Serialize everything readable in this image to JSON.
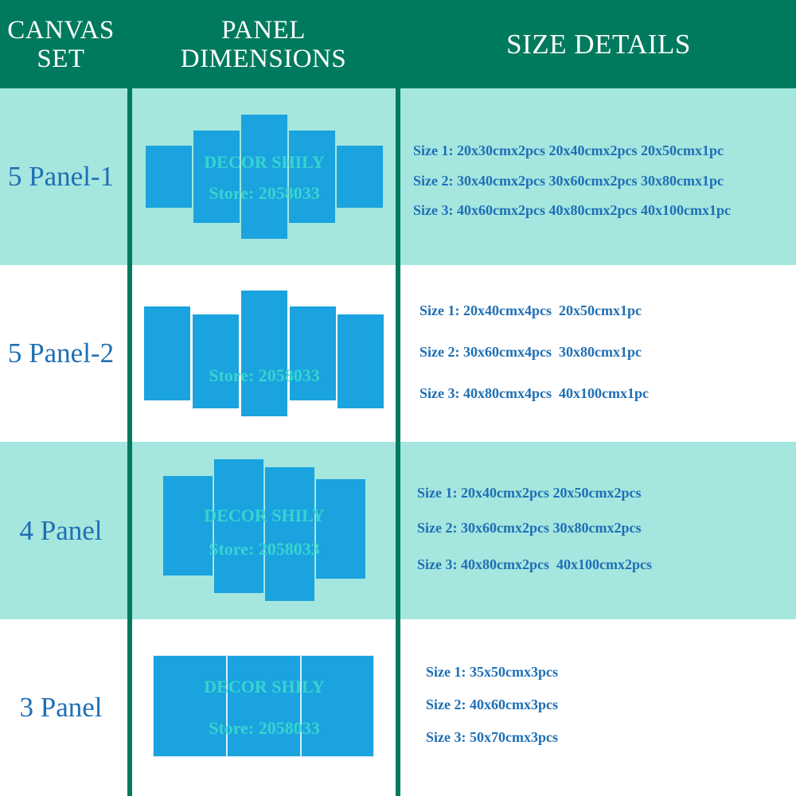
{
  "header": {
    "col1_line1": "CANVAS",
    "col1_line2": "SET",
    "col2_line1": "PANEL",
    "col2_line2": "DIMENSIONS",
    "col3": "SIZE DETAILS"
  },
  "rows": [
    {
      "label": "5 Panel-1",
      "watermark_1": "DECOR SHILY",
      "watermark_2": "Store: 2058033",
      "sizes": [
        "Size 1: 20x30cmx2pcs 20x40cmx2pcs 20x50cmx1pc",
        "Size 2: 30x40cmx2pcs 30x60cmx2pcs 30x80cmx1pc",
        "Size 3: 40x60cmx2pcs 40x80cmx2pcs 40x100cmx1pc"
      ]
    },
    {
      "label": "5 Panel-2",
      "watermark_2": "Store: 2058033",
      "sizes": [
        "Size 1: 20x40cmx4pcs  20x50cmx1pc",
        "Size 2: 30x60cmx4pcs  30x80cmx1pc",
        "Size 3: 40x80cmx4pcs  40x100cmx1pc"
      ]
    },
    {
      "label": "4 Panel",
      "watermark_1": "DECOR SHILY",
      "watermark_2": "Store: 2058033",
      "sizes": [
        "Size 1: 20x40cmx2pcs 20x50cmx2pcs",
        "Size 2: 30x60cmx2pcs 30x80cmx2pcs",
        "Size 3: 40x80cmx2pcs  40x100cmx2pcs"
      ]
    },
    {
      "label": "3 Panel",
      "watermark_1": "DECOR SHILY",
      "watermark_2": "Store: 2058033",
      "sizes": [
        "Size 1: 35x50cmx3pcs",
        "Size 2: 40x60cmx3pcs",
        "Size 3: 50x70cmx3pcs"
      ]
    }
  ],
  "colors": {
    "header_green": "#007a5e",
    "row_teal": "#a5e6df",
    "panel_blue": "#1aa3df",
    "text_blue": "#1f6fb4",
    "watermark_cyan": "#39d7cf"
  }
}
